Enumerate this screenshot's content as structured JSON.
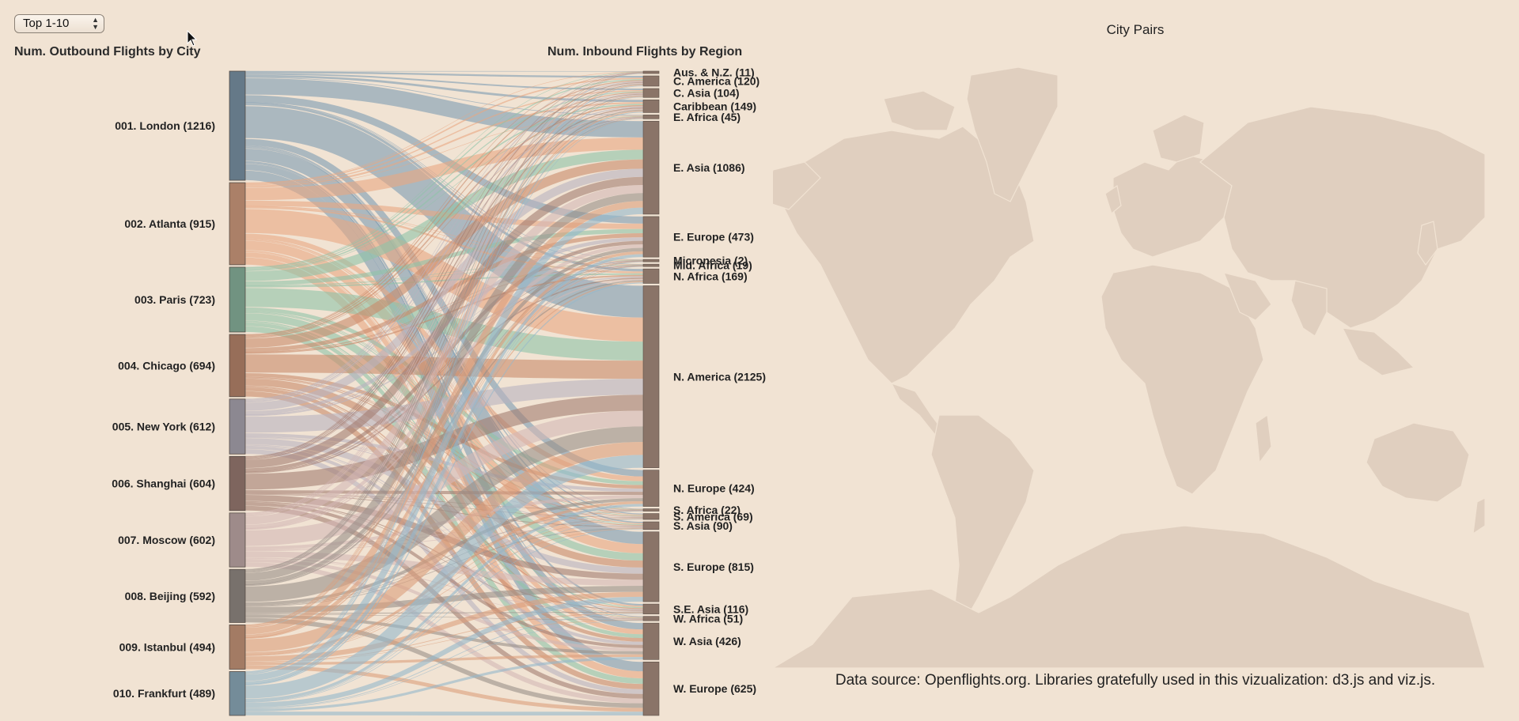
{
  "controls": {
    "range_select": {
      "selected": "Top 1-10"
    }
  },
  "headings": {
    "outbound": "Num. Outbound Flights by City",
    "inbound": "Num. Inbound Flights by Region",
    "map": "City Pairs"
  },
  "footer": {
    "data_source": "Data source: Openflights.org. Libraries gratefully used in this vizualization: d3.js and viz.js."
  },
  "chart_data": {
    "type": "sankey",
    "sources": [
      {
        "label": "001. London (1216)",
        "value": 1216,
        "color": "#7d9bb3"
      },
      {
        "label": "002. Atlanta (915)",
        "value": 915,
        "color": "#e9a682"
      },
      {
        "label": "003. Paris (723)",
        "value": 723,
        "color": "#8fc3a8"
      },
      {
        "label": "004. Chicago (694)",
        "value": 694,
        "color": "#c98b6b"
      },
      {
        "label": "005. New York (612)",
        "value": 612,
        "color": "#b9b2c0"
      },
      {
        "label": "006. Shanghai (604)",
        "value": 604,
        "color": "#a37d72"
      },
      {
        "label": "007. Moscow (602)",
        "value": 602,
        "color": "#d4b7b5"
      },
      {
        "label": "008. Beijing (592)",
        "value": 592,
        "color": "#9a8f88"
      },
      {
        "label": "009. Istanbul (494)",
        "value": 494,
        "color": "#dc9f7c"
      },
      {
        "label": "010. Frankfurt (489)",
        "value": 489,
        "color": "#94b8cc"
      }
    ],
    "targets": [
      {
        "label": "Aus. & N.Z. (11)",
        "value": 11
      },
      {
        "label": "C. America (120)",
        "value": 120
      },
      {
        "label": "C. Asia (104)",
        "value": 104
      },
      {
        "label": "Caribbean (149)",
        "value": 149
      },
      {
        "label": "E. Africa (45)",
        "value": 45
      },
      {
        "label": "E. Asia (1086)",
        "value": 1086
      },
      {
        "label": "E. Europe (473)",
        "value": 473
      },
      {
        "label": "Micronesia (2)",
        "value": 2
      },
      {
        "label": "Mid. Africa (19)",
        "value": 19
      },
      {
        "label": "N. Africa (169)",
        "value": 169
      },
      {
        "label": "N. America (2125)",
        "value": 2125
      },
      {
        "label": "N. Europe (424)",
        "value": 424
      },
      {
        "label": "S. Africa (22)",
        "value": 22
      },
      {
        "label": "S. America (69)",
        "value": 69
      },
      {
        "label": "S. Asia (90)",
        "value": 90
      },
      {
        "label": "S. Europe (815)",
        "value": 815
      },
      {
        "label": "S.E. Asia (116)",
        "value": 116
      },
      {
        "label": "W. Africa (51)",
        "value": 51
      },
      {
        "label": "W. Asia (426)",
        "value": 426
      },
      {
        "label": "W. Europe (625)",
        "value": 625
      }
    ]
  }
}
